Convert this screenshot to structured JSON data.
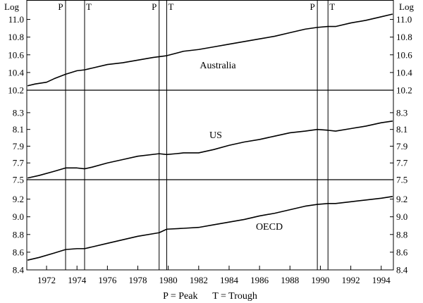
{
  "chart_data": {
    "type": "line",
    "axis_label_left": "Log",
    "axis_label_right": "Log",
    "x_ticks": [
      "1972",
      "1974",
      "1976",
      "1978",
      "1980",
      "1982",
      "1984",
      "1986",
      "1988",
      "1990",
      "1992",
      "1994"
    ],
    "xlim": [
      1970.7,
      1994.8
    ],
    "footnote": "P = Peak      T = Trough",
    "cycle_lines": [
      {
        "label": "P",
        "x": 1973.25
      },
      {
        "label": "T",
        "x": 1974.5
      },
      {
        "label": "P",
        "x": 1979.4
      },
      {
        "label": "T",
        "x": 1979.9
      },
      {
        "label": "P",
        "x": 1989.8
      },
      {
        "label": "T",
        "x": 1990.5
      }
    ],
    "panels": [
      {
        "name": "Australia",
        "ylim": [
          10.2,
          11.1
        ],
        "yticks": [
          "10.2",
          "10.4",
          "10.6",
          "10.8",
          "11.0"
        ],
        "points": [
          [
            1970.75,
            10.25
          ],
          [
            1971.25,
            10.27
          ],
          [
            1972.0,
            10.29
          ],
          [
            1972.5,
            10.33
          ],
          [
            1973.25,
            10.38
          ],
          [
            1974.0,
            10.42
          ],
          [
            1974.5,
            10.43
          ],
          [
            1975.0,
            10.45
          ],
          [
            1976.0,
            10.49
          ],
          [
            1977.0,
            10.51
          ],
          [
            1978.0,
            10.54
          ],
          [
            1979.0,
            10.57
          ],
          [
            1979.9,
            10.59
          ],
          [
            1981.0,
            10.64
          ],
          [
            1982.0,
            10.66
          ],
          [
            1983.0,
            10.69
          ],
          [
            1984.0,
            10.72
          ],
          [
            1985.0,
            10.75
          ],
          [
            1986.0,
            10.78
          ],
          [
            1987.0,
            10.81
          ],
          [
            1988.0,
            10.85
          ],
          [
            1989.0,
            10.89
          ],
          [
            1989.8,
            10.91
          ],
          [
            1990.5,
            10.92
          ],
          [
            1991.0,
            10.92
          ],
          [
            1992.0,
            10.96
          ],
          [
            1993.0,
            10.99
          ],
          [
            1994.0,
            11.03
          ],
          [
            1994.75,
            11.06
          ]
        ]
      },
      {
        "name": "US",
        "ylim": [
          7.5,
          8.4
        ],
        "yticks": [
          "7.5",
          "7.7",
          "7.9",
          "8.1",
          "8.3"
        ],
        "points": [
          [
            1970.75,
            7.52
          ],
          [
            1971.5,
            7.55
          ],
          [
            1972.5,
            7.6
          ],
          [
            1973.25,
            7.64
          ],
          [
            1974.0,
            7.64
          ],
          [
            1974.5,
            7.63
          ],
          [
            1975.0,
            7.65
          ],
          [
            1976.0,
            7.7
          ],
          [
            1977.0,
            7.74
          ],
          [
            1978.0,
            7.78
          ],
          [
            1979.4,
            7.81
          ],
          [
            1979.9,
            7.8
          ],
          [
            1980.5,
            7.81
          ],
          [
            1981.0,
            7.82
          ],
          [
            1982.0,
            7.82
          ],
          [
            1983.0,
            7.86
          ],
          [
            1984.0,
            7.91
          ],
          [
            1985.0,
            7.95
          ],
          [
            1986.0,
            7.98
          ],
          [
            1987.0,
            8.02
          ],
          [
            1988.0,
            8.06
          ],
          [
            1989.0,
            8.08
          ],
          [
            1989.8,
            8.1
          ],
          [
            1990.5,
            8.09
          ],
          [
            1991.0,
            8.08
          ],
          [
            1992.0,
            8.11
          ],
          [
            1993.0,
            8.14
          ],
          [
            1994.0,
            8.18
          ],
          [
            1994.75,
            8.2
          ]
        ]
      },
      {
        "name": "OECD",
        "ylim": [
          8.4,
          9.3
        ],
        "yticks": [
          "8.4",
          "8.6",
          "8.8",
          "9.0",
          "9.2"
        ],
        "points": [
          [
            1970.75,
            8.51
          ],
          [
            1971.5,
            8.54
          ],
          [
            1972.5,
            8.59
          ],
          [
            1973.25,
            8.63
          ],
          [
            1974.0,
            8.64
          ],
          [
            1974.5,
            8.64
          ],
          [
            1975.0,
            8.66
          ],
          [
            1976.0,
            8.7
          ],
          [
            1977.0,
            8.74
          ],
          [
            1978.0,
            8.78
          ],
          [
            1979.4,
            8.82
          ],
          [
            1979.9,
            8.86
          ],
          [
            1981.0,
            8.87
          ],
          [
            1982.0,
            8.88
          ],
          [
            1983.0,
            8.91
          ],
          [
            1984.0,
            8.94
          ],
          [
            1985.0,
            8.97
          ],
          [
            1986.0,
            9.01
          ],
          [
            1987.0,
            9.04
          ],
          [
            1988.0,
            9.08
          ],
          [
            1989.0,
            9.12
          ],
          [
            1989.8,
            9.14
          ],
          [
            1990.5,
            9.15
          ],
          [
            1991.0,
            9.15
          ],
          [
            1992.0,
            9.17
          ],
          [
            1993.0,
            9.19
          ],
          [
            1994.0,
            9.21
          ],
          [
            1994.75,
            9.23
          ]
        ]
      }
    ]
  }
}
